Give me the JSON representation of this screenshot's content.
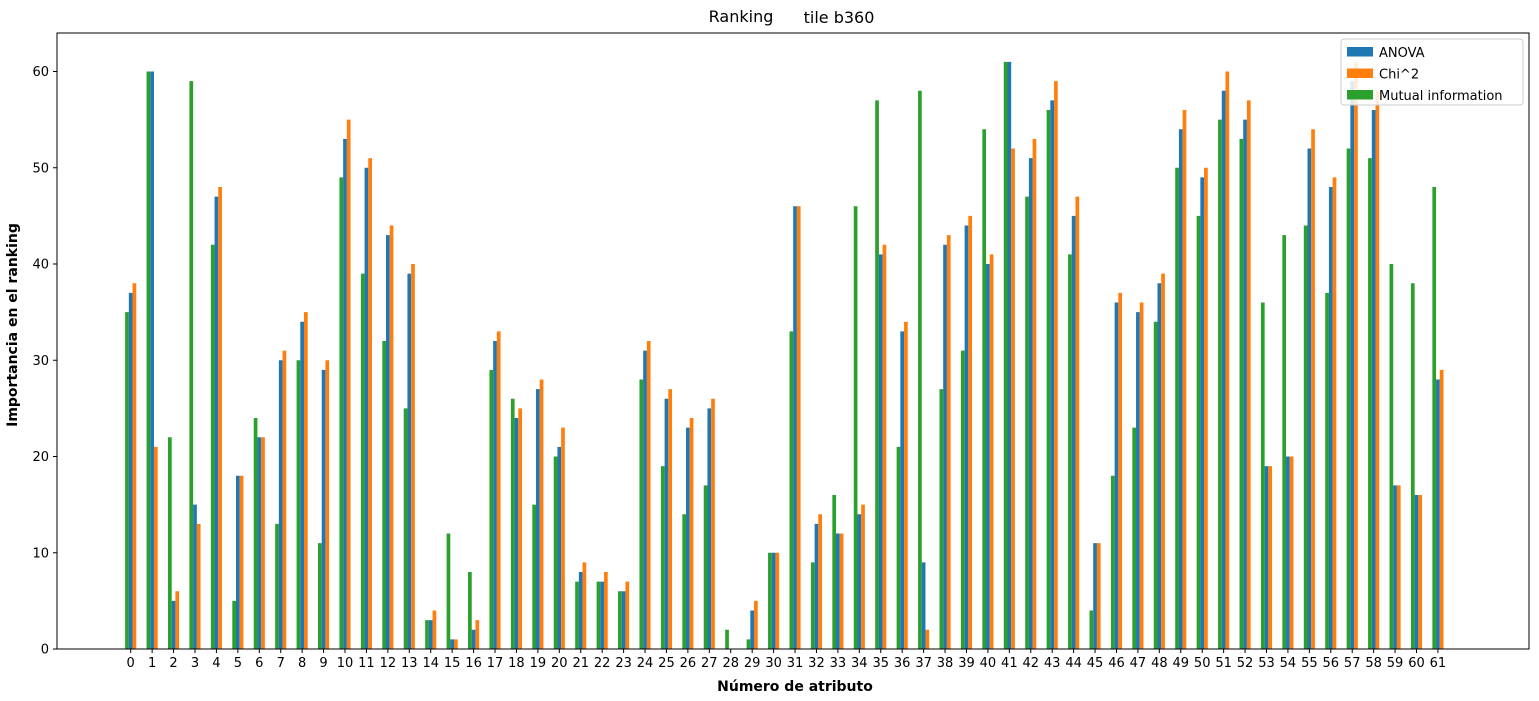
{
  "chart_data": {
    "type": "bar",
    "title": "Ranking",
    "subtitle": "tile b360",
    "xlabel": "Número de atributo",
    "ylabel": "Importancia en el ranking",
    "ylim": [
      0,
      64
    ],
    "yticks": [
      0,
      10,
      20,
      30,
      40,
      50,
      60
    ],
    "grid": false,
    "legend_position": "top-right",
    "categories": [
      "0",
      "1",
      "2",
      "3",
      "4",
      "5",
      "6",
      "7",
      "8",
      "9",
      "10",
      "11",
      "12",
      "13",
      "14",
      "15",
      "16",
      "17",
      "18",
      "19",
      "20",
      "21",
      "22",
      "23",
      "24",
      "25",
      "26",
      "27",
      "28",
      "29",
      "30",
      "31",
      "32",
      "33",
      "34",
      "35",
      "36",
      "37",
      "38",
      "39",
      "40",
      "41",
      "42",
      "43",
      "44",
      "45",
      "46",
      "47",
      "48",
      "49",
      "50",
      "51",
      "52",
      "53",
      "54",
      "55",
      "56",
      "57",
      "58",
      "59",
      "60",
      "61"
    ],
    "series": [
      {
        "name": "Mutual information",
        "color": "#2ca02c",
        "values": [
          35,
          60,
          22,
          59,
          42,
          5,
          24,
          13,
          30,
          11,
          49,
          39,
          32,
          25,
          3,
          12,
          8,
          29,
          26,
          15,
          20,
          7,
          7,
          6,
          28,
          19,
          14,
          17,
          2,
          1,
          10,
          33,
          9,
          16,
          46,
          57,
          21,
          58,
          27,
          31,
          54,
          61,
          47,
          56,
          41,
          4,
          18,
          23,
          34,
          50,
          45,
          55,
          53,
          36,
          43,
          44,
          37,
          52,
          51,
          40,
          38,
          48
        ]
      },
      {
        "name": "ANOVA",
        "color": "#1f77b4",
        "values": [
          37,
          60,
          5,
          15,
          47,
          18,
          22,
          30,
          34,
          29,
          53,
          50,
          43,
          39,
          3,
          1,
          2,
          32,
          24,
          27,
          21,
          8,
          7,
          6,
          31,
          26,
          23,
          25,
          0,
          4,
          10,
          46,
          13,
          12,
          14,
          41,
          33,
          9,
          42,
          44,
          40,
          61,
          51,
          57,
          45,
          11,
          36,
          35,
          38,
          54,
          49,
          58,
          55,
          19,
          20,
          52,
          48,
          59,
          56,
          17,
          16,
          28
        ]
      },
      {
        "name": "Chi^2",
        "color": "#ff7f0e",
        "values": [
          38,
          21,
          6,
          13,
          48,
          18,
          22,
          31,
          35,
          30,
          55,
          51,
          44,
          40,
          4,
          1,
          3,
          33,
          25,
          28,
          23,
          9,
          8,
          7,
          32,
          27,
          24,
          26,
          0,
          5,
          10,
          46,
          14,
          12,
          15,
          42,
          34,
          2,
          43,
          45,
          41,
          52,
          53,
          59,
          47,
          11,
          37,
          36,
          39,
          56,
          50,
          60,
          57,
          19,
          20,
          54,
          49,
          61,
          58,
          17,
          16,
          29
        ]
      }
    ],
    "legend_order": [
      "ANOVA",
      "Chi^2",
      "Mutual information"
    ]
  }
}
